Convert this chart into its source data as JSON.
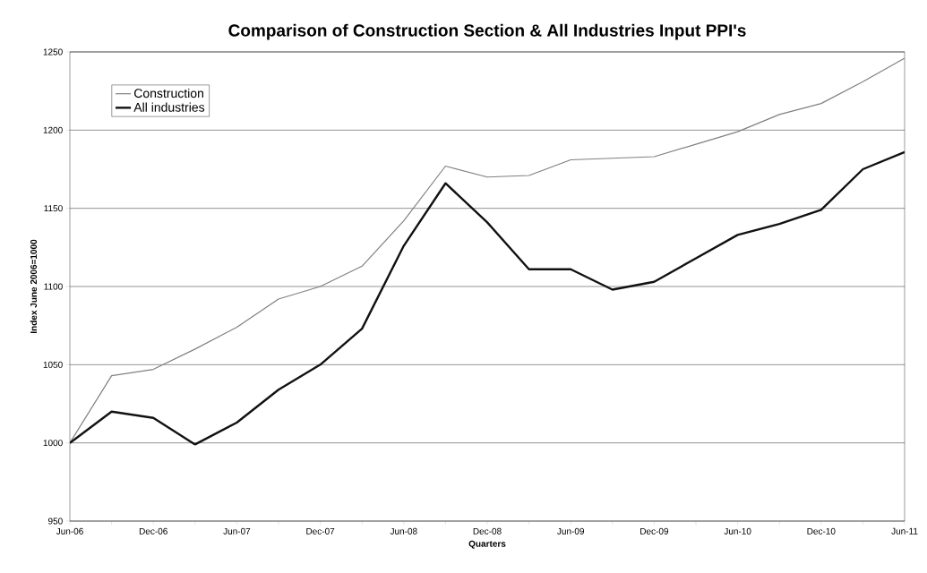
{
  "chart_data": {
    "type": "line",
    "title": "Comparison of Construction Section & All Industries Input PPI's",
    "xlabel": "Quarters",
    "ylabel": "Index June 2006=1000",
    "categories": [
      "Jun-06",
      null,
      "Dec-06",
      null,
      "Jun-07",
      null,
      "Dec-07",
      null,
      "Jun-08",
      null,
      "Dec-08",
      null,
      "Jun-09",
      null,
      "Dec-09",
      null,
      "Jun-10",
      null,
      "Dec-10",
      null,
      "Jun-11"
    ],
    "series": [
      {
        "name": "Construction",
        "color": "#808080",
        "values": [
          1000,
          1043,
          1047,
          1060,
          1074,
          1092,
          1100,
          1113,
          1142,
          1177,
          1170,
          1171,
          1181,
          1182,
          1183,
          1191,
          1199,
          1210,
          1217,
          1231,
          1246
        ]
      },
      {
        "name": "All industries",
        "color": "#111111",
        "values": [
          1000,
          1020,
          1016,
          999,
          1013,
          1034,
          1050,
          1073,
          1126,
          1166,
          1141,
          1111,
          1111,
          1098,
          1103,
          1118,
          1133,
          1140,
          1149,
          1175,
          1186
        ]
      }
    ],
    "ylim": [
      950,
      1250
    ],
    "yticks": [
      950,
      1000,
      1050,
      1100,
      1150,
      1200,
      1250
    ],
    "grid": "y",
    "legend": "top left",
    "marker": "none",
    "line_style": "solid"
  }
}
